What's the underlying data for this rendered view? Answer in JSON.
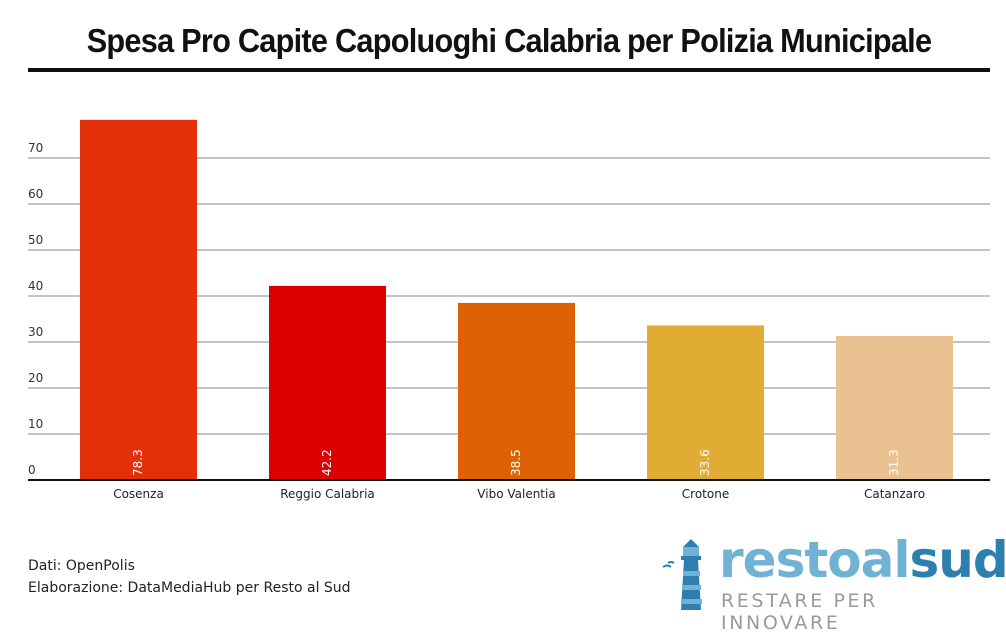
{
  "title": "Spesa Pro Capite Capoluoghi Calabria per Polizia Municipale",
  "source_lines": [
    "Dati: OpenPolis",
    "Elaborazione: DataMediaHub per Resto al Sud"
  ],
  "logo": {
    "word_light": "restoal",
    "word_dark": "sud",
    "tagline": "RESTARE PER INNOVARE",
    "icon": "lighthouse-icon"
  },
  "chart_data": {
    "type": "bar",
    "title": "Spesa Pro Capite Capoluoghi Calabria per Polizia Municipale",
    "xlabel": "",
    "ylabel": "",
    "categories": [
      "Cosenza",
      "Reggio Calabria",
      "Vibo Valentia",
      "Crotone",
      "Catanzaro"
    ],
    "values": [
      78.3,
      42.2,
      38.5,
      33.6,
      31.3
    ],
    "value_labels": [
      "78.3",
      "42.2",
      "38.5",
      "33.6",
      "31.3"
    ],
    "colors": [
      "#e3300b",
      "#dd0000",
      "#dd6204",
      "#e0ac33",
      "#eac191"
    ],
    "ylim": [
      0,
      80
    ],
    "yticks": [
      0,
      10,
      20,
      30,
      40,
      50,
      60,
      70
    ],
    "grid": true,
    "legend": "none"
  }
}
